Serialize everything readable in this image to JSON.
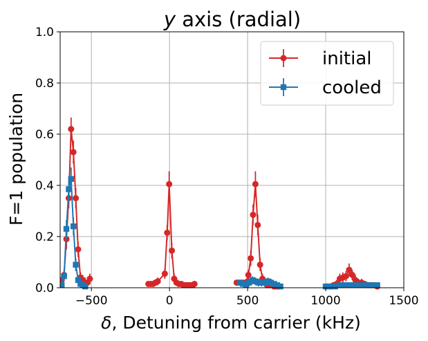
{
  "chart_data": {
    "type": "line",
    "title_italic": "y",
    "title_rest": " axis (radial)",
    "xlabel_italic": "δ",
    "xlabel_rest": ", Detuning from carrier (kHz)",
    "ylabel": "F=1 population",
    "xlim": [
      -700,
      1500
    ],
    "ylim": [
      0,
      1.0
    ],
    "x_ticks": [
      -500,
      0,
      500,
      1000,
      1500
    ],
    "x_tick_labels": [
      "−500",
      "0",
      "500",
      "1000",
      "1500"
    ],
    "y_ticks": [
      0,
      0.2,
      0.4,
      0.6,
      0.8,
      1.0
    ],
    "y_tick_labels": [
      "0.0",
      "0.2",
      "0.4",
      "0.6",
      "0.8",
      "1.0"
    ],
    "grid": true,
    "legend_position": "top-right",
    "series": [
      {
        "name": "initial",
        "color": "#d62728",
        "marker": "circle",
        "segments": [
          {
            "x": [
              -690,
              -675,
              -660,
              -645,
              -630,
              -615,
              -600,
              -585,
              -570,
              -555,
              -540,
              -525,
              -510
            ],
            "y": [
              0.03,
              0.05,
              0.19,
              0.35,
              0.62,
              0.53,
              0.35,
              0.15,
              0.04,
              0.03,
              0.02,
              0.02,
              0.035
            ],
            "err": [
              0.02,
              0.02,
              0.04,
              0.04,
              0.045,
              0.045,
              0.04,
              0.03,
              0.02,
              0.02,
              0.02,
              0.02,
              0.02
            ]
          },
          {
            "x": [
              -135,
              -120,
              -105,
              -90,
              -75,
              -60,
              -45,
              -30,
              -15,
              0,
              15,
              30,
              45,
              60,
              75,
              90,
              105,
              120,
              135
            ],
            "y": [
              0.015,
              0.015,
              0.015,
              0.02,
              0.025,
              0.055,
              0.215,
              0.405,
              0.145,
              0.035,
              0.02,
              0.015,
              0.015,
              0.01,
              0.01,
              0.01,
              0.01,
              0.01,
              0.015
            ],
            "err": [
              0.01,
              0.01,
              0.01,
              0.01,
              0.015,
              0.02,
              0.03,
              0.05,
              0.03,
              0.02,
              0.01,
              0.01,
              0.01,
              0.01,
              0.01,
              0.01,
              0.01,
              0.01,
              0.01
            ],
            "x_override": [
              -135,
              -120,
              -105,
              -90,
              -75,
              -30,
              -15,
              -2,
              15,
              30,
              45,
              60,
              75,
              90,
              105,
              120,
              135,
              150,
              160
            ]
          },
          {
            "x": [
              430,
              445,
              460,
              475,
              490,
              505,
              520,
              535,
              550,
              565,
              580,
              595,
              610,
              625,
              640,
              655,
              670,
              685,
              700
            ],
            "y": [
              0.02,
              0.02,
              0.02,
              0.02,
              0.02,
              0.05,
              0.115,
              0.285,
              0.405,
              0.245,
              0.09,
              0.035,
              0.02,
              0.01,
              0.01,
              0.01,
              0.005,
              0.005,
              0.005
            ],
            "err": [
              0.01,
              0.01,
              0.01,
              0.01,
              0.015,
              0.02,
              0.03,
              0.04,
              0.05,
              0.04,
              0.025,
              0.02,
              0.01,
              0.01,
              0.01,
              0.01,
              0.01,
              0.01,
              0.01
            ]
          },
          {
            "x": [
              1010,
              1030,
              1050,
              1070,
              1090,
              1110,
              1130,
              1150,
              1170,
              1190,
              1210,
              1230,
              1250,
              1270,
              1290,
              1310,
              1330
            ],
            "y": [
              0.005,
              0.005,
              0.01,
              0.015,
              0.035,
              0.04,
              0.045,
              0.07,
              0.05,
              0.03,
              0.02,
              0.02,
              0.015,
              0.01,
              0.01,
              0.01,
              0.005
            ],
            "err": [
              0.01,
              0.01,
              0.01,
              0.015,
              0.02,
              0.02,
              0.02,
              0.025,
              0.02,
              0.02,
              0.015,
              0.015,
              0.01,
              0.01,
              0.01,
              0.01,
              0.01
            ]
          }
        ]
      },
      {
        "name": "cooled",
        "color": "#1f77b4",
        "marker": "square",
        "segments": [
          {
            "x": [
              -690,
              -675,
              -660,
              -645,
              -630,
              -615,
              -600,
              -585,
              -570,
              -555,
              -540
            ],
            "y": [
              0.01,
              0.045,
              0.23,
              0.385,
              0.425,
              0.24,
              0.09,
              0.03,
              0.015,
              0.01,
              0.005
            ],
            "err": [
              0.01,
              0.015,
              0.035,
              0.045,
              0.045,
              0.035,
              0.025,
              0.015,
              0.01,
              0.01,
              0.01
            ]
          },
          {
            "x": [
              450,
              470,
              490,
              510,
              530,
              550,
              570,
              590,
              610,
              630,
              650,
              670,
              690,
              710
            ],
            "y": [
              0.02,
              0.015,
              0.01,
              0.02,
              0.03,
              0.025,
              0.02,
              0.02,
              0.02,
              0.025,
              0.02,
              0.015,
              0.01,
              0.005
            ],
            "err": [
              0.01,
              0.01,
              0.01,
              0.015,
              0.015,
              0.015,
              0.015,
              0.015,
              0.015,
              0.015,
              0.015,
              0.01,
              0.01,
              0.01
            ]
          },
          {
            "x": [
              1000,
              1030,
              1060,
              1090,
              1120,
              1150,
              1180,
              1210,
              1240,
              1270,
              1300,
              1330
            ],
            "y": [
              0.005,
              0.005,
              0.005,
              0.01,
              0.01,
              0.01,
              0.01,
              0.01,
              0.01,
              0.01,
              0.01,
              0.01
            ],
            "err": [
              0.01,
              0.01,
              0.01,
              0.01,
              0.01,
              0.01,
              0.01,
              0.01,
              0.01,
              0.01,
              0.01,
              0.01
            ]
          }
        ]
      }
    ]
  }
}
